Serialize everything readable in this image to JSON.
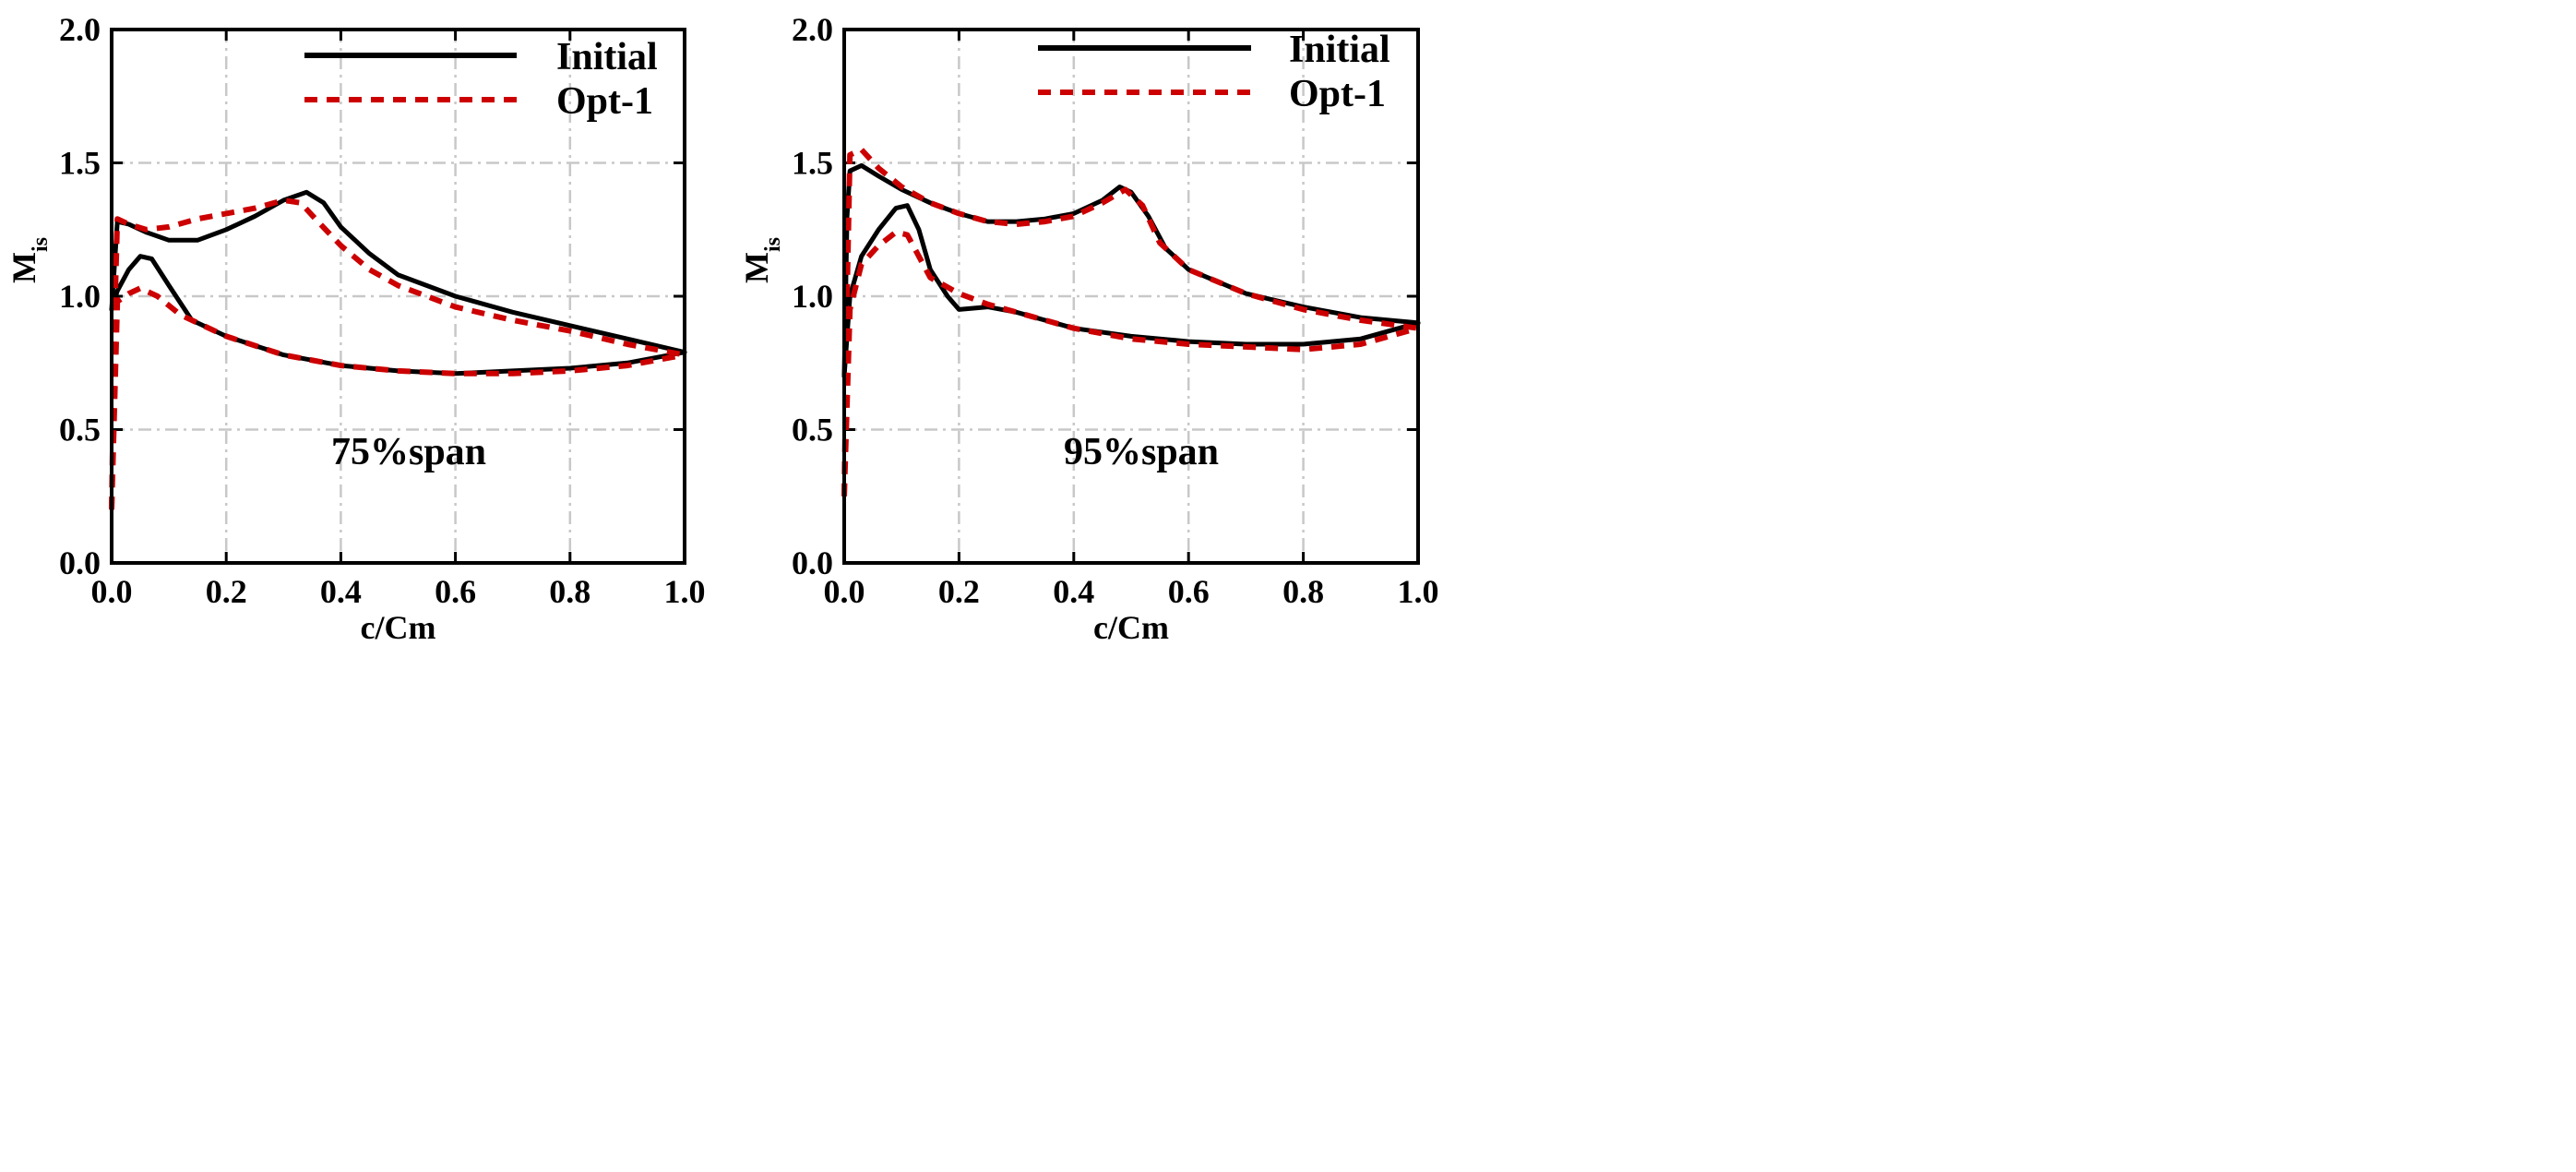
{
  "chart_data": [
    {
      "type": "line",
      "title": "",
      "annotation": "75%span",
      "xlabel": "c/Cm",
      "ylabel": "M",
      "ylabel_sub": "is",
      "xlim": [
        0.0,
        1.0
      ],
      "ylim": [
        0.0,
        2.0
      ],
      "xticks": [
        0.0,
        0.2,
        0.4,
        0.6,
        0.8,
        1.0
      ],
      "xtick_labels": [
        "0.0",
        "0.2",
        "0.4",
        "0.6",
        "0.8",
        "1.0"
      ],
      "yticks": [
        0.0,
        0.5,
        1.0,
        1.5,
        2.0
      ],
      "ytick_labels": [
        "0.0",
        "0.5",
        "1.0",
        "1.5",
        "2.0"
      ],
      "grid": true,
      "legend_position": "top-right",
      "series": [
        {
          "name": "Initial",
          "style": "solid",
          "color": "#000000",
          "segments": [
            [
              [
                0.0,
                0.95
              ],
              [
                0.01,
                1.28
              ],
              [
                0.03,
                1.27
              ],
              [
                0.06,
                1.24
              ],
              [
                0.1,
                1.21
              ],
              [
                0.15,
                1.21
              ],
              [
                0.2,
                1.25
              ],
              [
                0.25,
                1.3
              ],
              [
                0.3,
                1.36
              ],
              [
                0.34,
                1.39
              ],
              [
                0.37,
                1.35
              ],
              [
                0.4,
                1.26
              ],
              [
                0.45,
                1.16
              ],
              [
                0.5,
                1.08
              ],
              [
                0.6,
                1.0
              ],
              [
                0.7,
                0.94
              ],
              [
                0.8,
                0.89
              ],
              [
                0.9,
                0.84
              ],
              [
                1.0,
                0.79
              ]
            ],
            [
              [
                0.0,
                0.95
              ],
              [
                0.01,
                1.02
              ],
              [
                0.03,
                1.1
              ],
              [
                0.05,
                1.15
              ],
              [
                0.07,
                1.14
              ],
              [
                0.1,
                1.04
              ],
              [
                0.14,
                0.91
              ],
              [
                0.2,
                0.85
              ],
              [
                0.3,
                0.78
              ],
              [
                0.4,
                0.74
              ],
              [
                0.5,
                0.72
              ],
              [
                0.6,
                0.71
              ],
              [
                0.7,
                0.72
              ],
              [
                0.8,
                0.73
              ],
              [
                0.9,
                0.75
              ],
              [
                1.0,
                0.79
              ]
            ]
          ]
        },
        {
          "name": "Opt-1",
          "style": "dashed",
          "color": "#cc0000",
          "segments": [
            [
              [
                0.0,
                0.2
              ],
              [
                0.005,
                0.9
              ],
              [
                0.01,
                1.29
              ],
              [
                0.03,
                1.27
              ],
              [
                0.06,
                1.25
              ],
              [
                0.1,
                1.26
              ],
              [
                0.15,
                1.29
              ],
              [
                0.2,
                1.31
              ],
              [
                0.25,
                1.33
              ],
              [
                0.3,
                1.36
              ],
              [
                0.33,
                1.35
              ],
              [
                0.36,
                1.28
              ],
              [
                0.4,
                1.19
              ],
              [
                0.45,
                1.1
              ],
              [
                0.5,
                1.04
              ],
              [
                0.6,
                0.96
              ],
              [
                0.7,
                0.91
              ],
              [
                0.8,
                0.87
              ],
              [
                0.9,
                0.82
              ],
              [
                1.0,
                0.78
              ]
            ],
            [
              [
                0.0,
                0.2
              ],
              [
                0.01,
                0.98
              ],
              [
                0.03,
                1.01
              ],
              [
                0.05,
                1.03
              ],
              [
                0.08,
                1.0
              ],
              [
                0.12,
                0.93
              ],
              [
                0.16,
                0.89
              ],
              [
                0.2,
                0.85
              ],
              [
                0.3,
                0.78
              ],
              [
                0.4,
                0.74
              ],
              [
                0.5,
                0.72
              ],
              [
                0.6,
                0.71
              ],
              [
                0.7,
                0.71
              ],
              [
                0.8,
                0.72
              ],
              [
                0.9,
                0.74
              ],
              [
                1.0,
                0.78
              ]
            ]
          ]
        }
      ]
    },
    {
      "type": "line",
      "title": "",
      "annotation": "95%span",
      "xlabel": "c/Cm",
      "ylabel": "M",
      "ylabel_sub": "is",
      "xlim": [
        0.0,
        1.0
      ],
      "ylim": [
        0.0,
        2.0
      ],
      "xticks": [
        0.0,
        0.2,
        0.4,
        0.6,
        0.8,
        1.0
      ],
      "xtick_labels": [
        "0.0",
        "0.2",
        "0.4",
        "0.6",
        "0.8",
        "1.0"
      ],
      "yticks": [
        0.0,
        0.5,
        1.0,
        1.5,
        2.0
      ],
      "ytick_labels": [
        "0.0",
        "0.5",
        "1.0",
        "1.5",
        "2.0"
      ],
      "grid": true,
      "legend_position": "top-right",
      "series": [
        {
          "name": "Initial",
          "style": "solid",
          "color": "#000000",
          "segments": [
            [
              [
                0.0,
                0.7
              ],
              [
                0.005,
                1.3
              ],
              [
                0.01,
                1.47
              ],
              [
                0.03,
                1.49
              ],
              [
                0.06,
                1.45
              ],
              [
                0.1,
                1.4
              ],
              [
                0.15,
                1.35
              ],
              [
                0.2,
                1.31
              ],
              [
                0.25,
                1.28
              ],
              [
                0.3,
                1.28
              ],
              [
                0.35,
                1.29
              ],
              [
                0.4,
                1.31
              ],
              [
                0.45,
                1.36
              ],
              [
                0.48,
                1.41
              ],
              [
                0.5,
                1.39
              ],
              [
                0.53,
                1.3
              ],
              [
                0.56,
                1.18
              ],
              [
                0.6,
                1.1
              ],
              [
                0.7,
                1.01
              ],
              [
                0.8,
                0.96
              ],
              [
                0.9,
                0.92
              ],
              [
                1.0,
                0.9
              ]
            ],
            [
              [
                0.0,
                0.7
              ],
              [
                0.01,
                1.0
              ],
              [
                0.03,
                1.15
              ],
              [
                0.06,
                1.25
              ],
              [
                0.09,
                1.33
              ],
              [
                0.11,
                1.34
              ],
              [
                0.13,
                1.25
              ],
              [
                0.15,
                1.1
              ],
              [
                0.18,
                1.0
              ],
              [
                0.2,
                0.95
              ],
              [
                0.25,
                0.96
              ],
              [
                0.3,
                0.94
              ],
              [
                0.4,
                0.88
              ],
              [
                0.5,
                0.85
              ],
              [
                0.6,
                0.83
              ],
              [
                0.7,
                0.82
              ],
              [
                0.8,
                0.82
              ],
              [
                0.9,
                0.84
              ],
              [
                1.0,
                0.9
              ]
            ]
          ]
        },
        {
          "name": "Opt-1",
          "style": "dashed",
          "color": "#cc0000",
          "segments": [
            [
              [
                0.0,
                0.25
              ],
              [
                0.005,
                1.0
              ],
              [
                0.01,
                1.53
              ],
              [
                0.03,
                1.55
              ],
              [
                0.06,
                1.48
              ],
              [
                0.1,
                1.41
              ],
              [
                0.15,
                1.35
              ],
              [
                0.2,
                1.31
              ],
              [
                0.25,
                1.28
              ],
              [
                0.3,
                1.27
              ],
              [
                0.35,
                1.28
              ],
              [
                0.4,
                1.3
              ],
              [
                0.45,
                1.35
              ],
              [
                0.49,
                1.4
              ],
              [
                0.52,
                1.34
              ],
              [
                0.55,
                1.2
              ],
              [
                0.6,
                1.1
              ],
              [
                0.7,
                1.01
              ],
              [
                0.8,
                0.95
              ],
              [
                0.9,
                0.91
              ],
              [
                1.0,
                0.88
              ]
            ],
            [
              [
                0.0,
                0.25
              ],
              [
                0.01,
                0.95
              ],
              [
                0.03,
                1.12
              ],
              [
                0.06,
                1.19
              ],
              [
                0.09,
                1.24
              ],
              [
                0.11,
                1.23
              ],
              [
                0.13,
                1.15
              ],
              [
                0.15,
                1.07
              ],
              [
                0.2,
                1.01
              ],
              [
                0.25,
                0.97
              ],
              [
                0.3,
                0.94
              ],
              [
                0.4,
                0.88
              ],
              [
                0.5,
                0.84
              ],
              [
                0.6,
                0.82
              ],
              [
                0.7,
                0.81
              ],
              [
                0.8,
                0.8
              ],
              [
                0.9,
                0.82
              ],
              [
                1.0,
                0.88
              ]
            ]
          ]
        }
      ]
    }
  ]
}
